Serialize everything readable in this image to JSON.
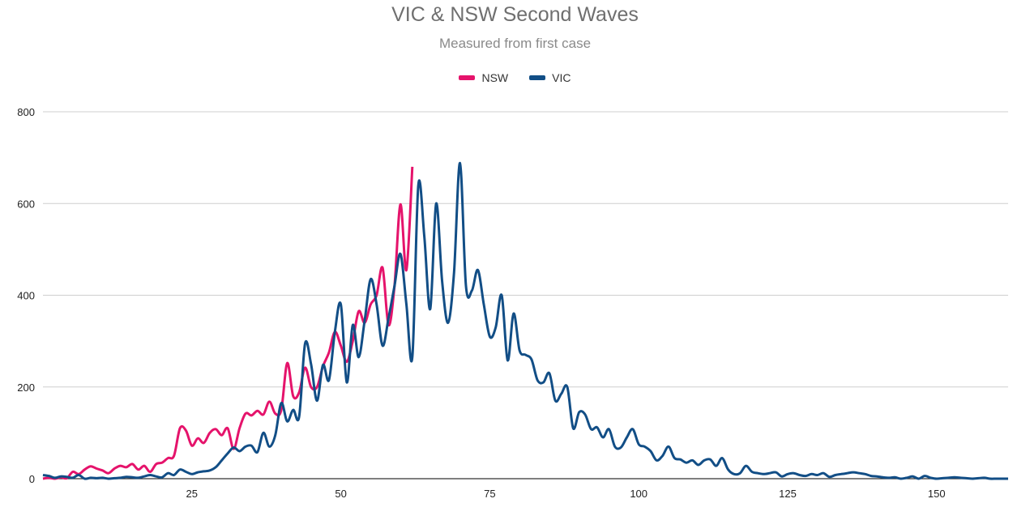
{
  "chart_data": {
    "type": "line",
    "title": "VIC & NSW Second Waves",
    "subtitle": "Measured from first case",
    "xlabel": "",
    "ylabel": "",
    "xlim": [
      0,
      162
    ],
    "ylim": [
      0,
      800
    ],
    "x_ticks": [
      25,
      50,
      75,
      100,
      125,
      150
    ],
    "y_ticks": [
      0,
      200,
      400,
      600,
      800
    ],
    "grid": "horizontal",
    "legend": "top-center",
    "series": [
      {
        "name": "NSW",
        "color": "#e5136b",
        "x": [
          0,
          1,
          2,
          3,
          4,
          5,
          6,
          7,
          8,
          9,
          10,
          11,
          12,
          13,
          14,
          15,
          16,
          17,
          18,
          19,
          20,
          21,
          22,
          23,
          24,
          25,
          26,
          27,
          28,
          29,
          30,
          31,
          32,
          33,
          34,
          35,
          36,
          37,
          38,
          39,
          40,
          41,
          42,
          43,
          44,
          45,
          46,
          47,
          48,
          49,
          50,
          51,
          52,
          53,
          54,
          55,
          56,
          57,
          58,
          59,
          60,
          61,
          62,
          63,
          64
        ],
        "y": [
          0,
          2,
          0,
          3,
          1,
          15,
          10,
          20,
          27,
          22,
          18,
          12,
          22,
          28,
          25,
          32,
          20,
          28,
          15,
          32,
          35,
          45,
          50,
          110,
          105,
          72,
          88,
          78,
          100,
          108,
          95,
          110,
          65,
          110,
          142,
          138,
          148,
          140,
          168,
          142,
          150,
          252,
          180,
          188,
          242,
          200,
          200,
          245,
          275,
          320,
          290,
          255,
          300,
          365,
          340,
          380,
          400,
          460,
          335,
          420,
          598,
          455,
          680,
          null,
          null
        ],
        "values_note_ignore": null
      },
      {
        "name": "VIC",
        "color": "#124e86",
        "x": [
          0,
          1,
          2,
          3,
          4,
          5,
          6,
          7,
          8,
          9,
          10,
          11,
          12,
          13,
          14,
          15,
          16,
          17,
          18,
          19,
          20,
          21,
          22,
          23,
          24,
          25,
          26,
          27,
          28,
          29,
          30,
          31,
          32,
          33,
          34,
          35,
          36,
          37,
          38,
          39,
          40,
          41,
          42,
          43,
          44,
          45,
          46,
          47,
          48,
          49,
          50,
          51,
          52,
          53,
          54,
          55,
          56,
          57,
          58,
          59,
          60,
          61,
          62,
          63,
          64,
          65,
          66,
          67,
          68,
          69,
          70,
          71,
          72,
          73,
          74,
          75,
          76,
          77,
          78,
          79,
          80,
          81,
          82,
          83,
          84,
          85,
          86,
          87,
          88,
          89,
          90,
          91,
          92,
          93,
          94,
          95,
          96,
          97,
          98,
          99,
          100,
          101,
          102,
          103,
          104,
          105,
          106,
          107,
          108,
          109,
          110,
          111,
          112,
          113,
          114,
          115,
          116,
          117,
          118,
          119,
          120,
          121,
          122,
          123,
          124,
          125,
          126,
          127,
          128,
          129,
          130,
          131,
          132,
          133,
          134,
          135,
          136,
          137,
          138,
          139,
          140,
          141,
          142,
          143,
          144,
          145,
          146,
          147,
          148,
          149,
          150,
          151,
          152,
          153,
          154,
          155,
          156,
          157,
          158,
          159,
          160,
          161,
          162
        ],
        "y": [
          8,
          6,
          2,
          5,
          4,
          2,
          8,
          0,
          2,
          1,
          2,
          0,
          1,
          2,
          4,
          3,
          2,
          5,
          8,
          5,
          3,
          12,
          8,
          20,
          15,
          10,
          14,
          16,
          18,
          25,
          40,
          55,
          68,
          60,
          70,
          72,
          58,
          100,
          70,
          95,
          165,
          125,
          150,
          135,
          295,
          250,
          170,
          248,
          215,
          320,
          380,
          210,
          335,
          265,
          345,
          435,
          380,
          290,
          350,
          420,
          490,
          380,
          265,
          640,
          530,
          370,
          600,
          430,
          340,
          450,
          688,
          420,
          410,
          455,
          380,
          310,
          330,
          400,
          258,
          360,
          280,
          270,
          260,
          215,
          210,
          230,
          170,
          185,
          200,
          110,
          145,
          140,
          108,
          112,
          90,
          108,
          70,
          68,
          90,
          108,
          75,
          70,
          60,
          40,
          50,
          70,
          45,
          42,
          35,
          40,
          30,
          40,
          42,
          28,
          45,
          20,
          10,
          12,
          28,
          15,
          12,
          10,
          12,
          14,
          5,
          10,
          12,
          8,
          6,
          10,
          8,
          12,
          4,
          8,
          10,
          12,
          14,
          12,
          10,
          6,
          5,
          3,
          2,
          3,
          0,
          2,
          5,
          0,
          6,
          2,
          0,
          1,
          2,
          3,
          2,
          1,
          0,
          1,
          2,
          0,
          0,
          0,
          0
        ]
      }
    ]
  }
}
